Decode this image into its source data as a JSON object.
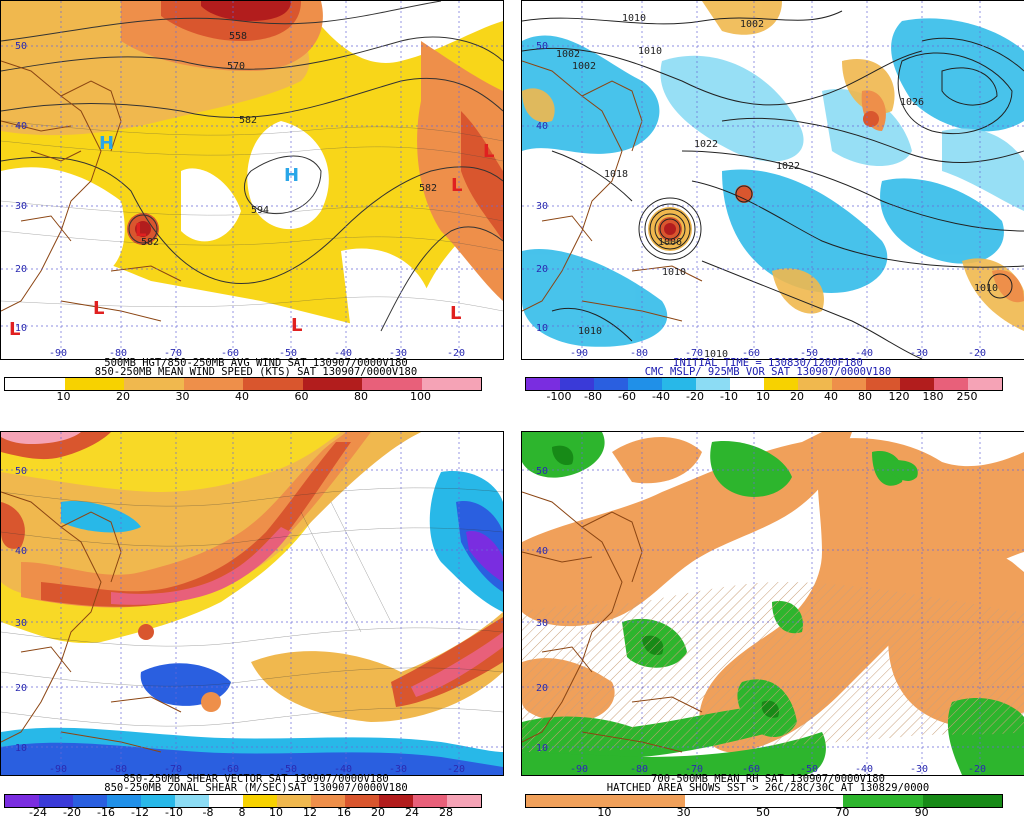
{
  "panels": [
    {
      "id": "p1",
      "caption_lines": [
        "500MB HGT/850-250MB AVG WIND SAT 130907/0000V180",
        "850-250MB MEAN WIND SPEED (KTS) SAT 130907/0000V180"
      ],
      "scale_labels": [
        "10",
        "20",
        "30",
        "40",
        "60",
        "80",
        "100"
      ],
      "scale_colors": [
        "#ffffff",
        "#f7d200",
        "#f0b84e",
        "#ee8f4a",
        "#d9562e",
        "#b21d1d",
        "#e8607a",
        "#f5a3b6"
      ],
      "map_labels": {
        "lat": [
          "50",
          "40",
          "30",
          "20",
          "10"
        ],
        "lon": [
          "-90",
          "-80",
          "-70",
          "-60",
          "-50",
          "-40",
          "-30",
          "-20"
        ],
        "contours": [
          "558",
          "570",
          "582",
          "582",
          "594",
          "582"
        ],
        "highs": [
          "H",
          "H"
        ],
        "lows": [
          "L",
          "L",
          "L",
          "L",
          "L",
          "L",
          "L"
        ]
      }
    },
    {
      "id": "p2",
      "caption_lines": [
        "INITIAL TIME = 130830/1200F180",
        "CMC MSLP/ 925MB VOR SAT 130907/0000V180"
      ],
      "scale_labels": [
        "-100",
        "-80",
        "-60",
        "-40",
        "-20",
        "-10",
        "10",
        "20",
        "40",
        "80",
        "120",
        "180",
        "250"
      ],
      "scale_colors": [
        "#7a2de0",
        "#3a3ad8",
        "#2a5fe0",
        "#2090e8",
        "#28b8e8",
        "#8cdcf4",
        "#ffffff",
        "#f7d200",
        "#f0b84e",
        "#ee8f4a",
        "#d9562e",
        "#b21d1d",
        "#e8607a",
        "#f5a3b6"
      ],
      "map_labels": {
        "lat": [
          "50",
          "40",
          "30",
          "20",
          "10"
        ],
        "lon": [
          "-90",
          "-80",
          "-70",
          "-60",
          "-50",
          "-40",
          "-30",
          "-20"
        ],
        "contours": [
          "1010",
          "1002",
          "1002",
          "1010",
          "1002",
          "1026",
          "1022",
          "1022",
          "1018",
          "1006",
          "1010",
          "1010",
          "1010",
          "1010"
        ]
      }
    },
    {
      "id": "p3",
      "caption_lines": [
        "850-250MB SHEAR VECTOR SAT 130907/0000V180",
        "850-250MB ZONAL SHEAR (M/SEC)SAT 130907/0000V180"
      ],
      "scale_labels": [
        "-24",
        "-20",
        "-16",
        "-12",
        "-10",
        "-8",
        "8",
        "10",
        "12",
        "16",
        "20",
        "24",
        "28"
      ],
      "scale_colors": [
        "#7a2de0",
        "#3a3ad8",
        "#2a5fe0",
        "#2090e8",
        "#28b8e8",
        "#8cdcf4",
        "#ffffff",
        "#f7d200",
        "#f0b84e",
        "#ee8f4a",
        "#d9562e",
        "#b21d1d",
        "#e8607a",
        "#f5a3b6"
      ],
      "map_labels": {
        "lat": [
          "50",
          "40",
          "30",
          "20",
          "10"
        ],
        "lon": [
          "-90",
          "-80",
          "-70",
          "-60",
          "-50",
          "-40",
          "-30",
          "-20"
        ]
      }
    },
    {
      "id": "p4",
      "caption_lines": [
        "700-500MB MEAN RH SAT 130907/0000V180",
        "HATCHED AREA SHOWS SST > 26C/28C/30C AT 130829/0000"
      ],
      "scale_labels": [
        "10",
        "30",
        "50",
        "70",
        "90"
      ],
      "scale_colors": [
        "#f0a05a",
        "#f0a05a",
        "#ffffff",
        "#ffffff",
        "#2db52d",
        "#178a17"
      ],
      "map_labels": {
        "lat": [
          "50",
          "40",
          "30",
          "20",
          "10"
        ],
        "lon": [
          "-90",
          "-80",
          "-70",
          "-60",
          "-50",
          "-40",
          "-30",
          "-20"
        ]
      }
    }
  ]
}
